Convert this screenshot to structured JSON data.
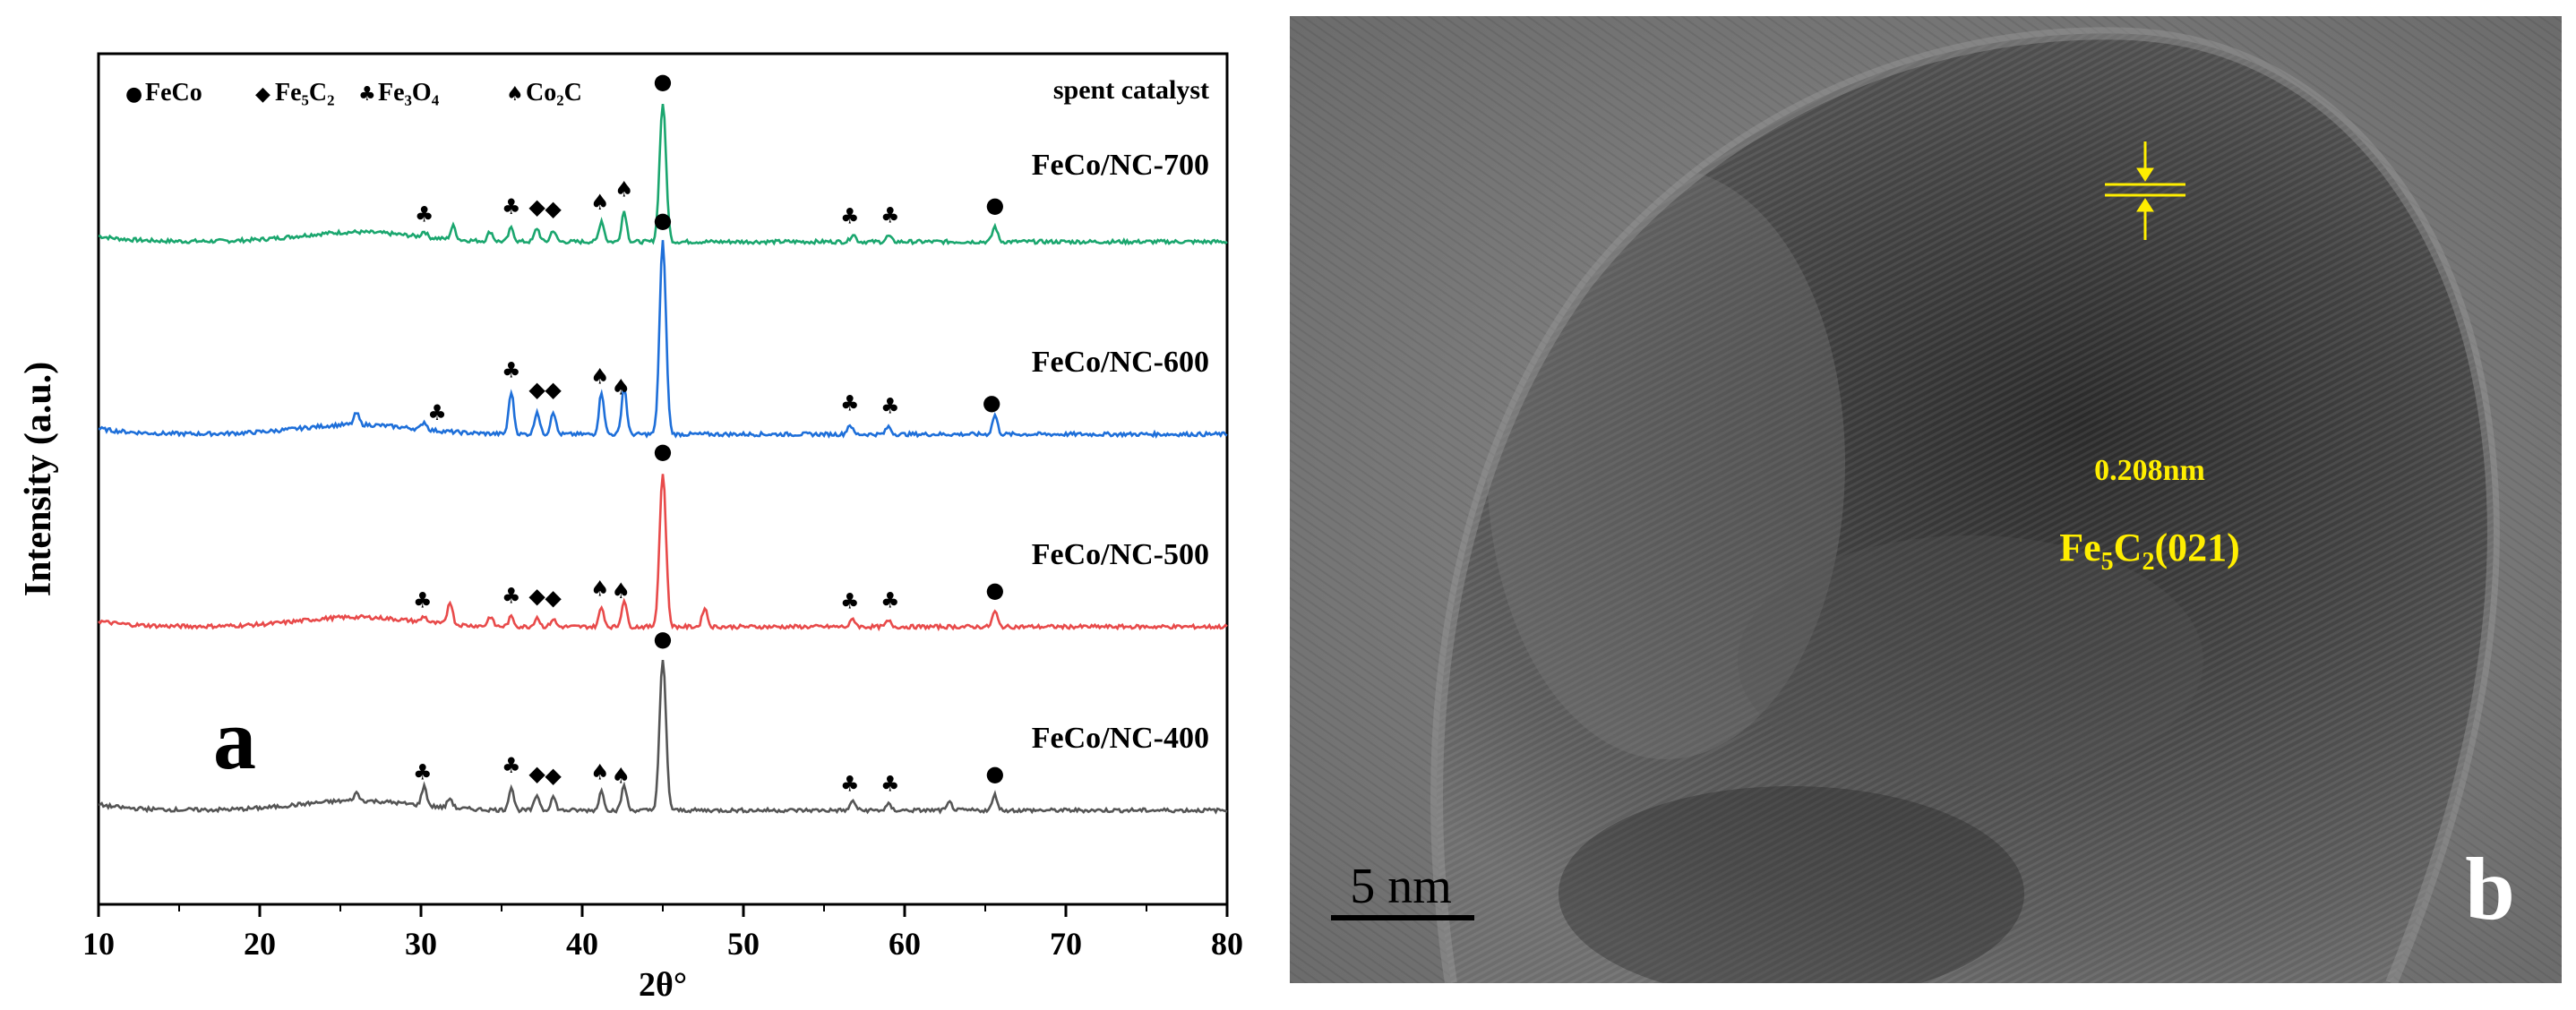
{
  "chart_data": {
    "type": "line",
    "panel_label": "a",
    "xlabel": "2θ°",
    "ylabel": "Intensity (a.u.)",
    "xlim": [
      10,
      80
    ],
    "x_ticks": [
      10,
      20,
      30,
      40,
      50,
      60,
      70,
      80
    ],
    "y_ticks": "none",
    "grid": false,
    "legend": {
      "placement": "top",
      "entries": [
        {
          "symbol": "●",
          "label": "FeCo"
        },
        {
          "symbol": "◆",
          "label": "Fe₅C₂"
        },
        {
          "symbol": "♣",
          "label": "Fe₃O₄"
        },
        {
          "symbol": "♠",
          "label": "Co₂C"
        }
      ]
    },
    "annotation_top_right": "spent catalyst",
    "series": [
      {
        "name": "FeCo/NC-700",
        "color": "#1aa66e",
        "offset": 3,
        "peaks": [
          [
            30.2,
            0.03
          ],
          [
            32,
            0.07
          ],
          [
            34.3,
            0.05
          ],
          [
            35.6,
            0.07
          ],
          [
            37.2,
            0.07
          ],
          [
            38.2,
            0.06
          ],
          [
            41.2,
            0.11
          ],
          [
            42.6,
            0.16
          ],
          [
            45,
            0.72
          ],
          [
            56.8,
            0.04
          ],
          [
            59,
            0.03
          ],
          [
            65.6,
            0.08
          ]
        ],
        "markers": [
          [
            30.2,
            "♣"
          ],
          [
            35.6,
            "♣"
          ],
          [
            37.2,
            "◆"
          ],
          [
            38.2,
            "◆"
          ],
          [
            41.1,
            "♠"
          ],
          [
            42.6,
            "♠"
          ],
          [
            45,
            "●"
          ],
          [
            56.6,
            "♣"
          ],
          [
            59.1,
            "♣"
          ],
          [
            65.6,
            "●"
          ]
        ]
      },
      {
        "name": "FeCo/NC-600",
        "color": "#1e6fd9",
        "offset": 2,
        "peaks": [
          [
            26,
            0.06
          ],
          [
            30.2,
            0.04
          ],
          [
            35.6,
            0.22
          ],
          [
            37.2,
            0.12
          ],
          [
            38.2,
            0.12
          ],
          [
            41.2,
            0.22
          ],
          [
            42.6,
            0.25
          ],
          [
            45,
            1.0
          ],
          [
            56.6,
            0.05
          ],
          [
            59,
            0.04
          ],
          [
            65.6,
            0.1
          ]
        ],
        "markers": [
          [
            31,
            "♣"
          ],
          [
            35.6,
            "♣"
          ],
          [
            37.2,
            "◆"
          ],
          [
            38.2,
            "◆"
          ],
          [
            41.1,
            "♠"
          ],
          [
            42.4,
            "♠"
          ],
          [
            45,
            "●"
          ],
          [
            56.6,
            "♣"
          ],
          [
            59.1,
            "♣"
          ],
          [
            65.4,
            "●"
          ]
        ]
      },
      {
        "name": "FeCo/NC-500",
        "color": "#e84a4a",
        "offset": 1,
        "peaks": [
          [
            30.2,
            0.03
          ],
          [
            31.8,
            0.12
          ],
          [
            34.3,
            0.05
          ],
          [
            35.6,
            0.05
          ],
          [
            37.2,
            0.05
          ],
          [
            38.2,
            0.04
          ],
          [
            41.2,
            0.1
          ],
          [
            42.6,
            0.14
          ],
          [
            45,
            0.8
          ],
          [
            47.6,
            0.1
          ],
          [
            56.8,
            0.04
          ],
          [
            59,
            0.03
          ],
          [
            65.6,
            0.08
          ]
        ],
        "markers": [
          [
            30.1,
            "♣"
          ],
          [
            35.6,
            "♣"
          ],
          [
            37.2,
            "◆"
          ],
          [
            38.2,
            "◆"
          ],
          [
            41.1,
            "♠"
          ],
          [
            42.4,
            "♠"
          ],
          [
            45,
            "●"
          ],
          [
            56.6,
            "♣"
          ],
          [
            59.1,
            "♣"
          ],
          [
            65.6,
            "●"
          ]
        ]
      },
      {
        "name": "FeCo/NC-400",
        "color": "#555555",
        "offset": 0,
        "peaks": [
          [
            26,
            0.04
          ],
          [
            30.2,
            0.1
          ],
          [
            31.8,
            0.05
          ],
          [
            35.6,
            0.12
          ],
          [
            37.2,
            0.08
          ],
          [
            38.2,
            0.07
          ],
          [
            41.2,
            0.1
          ],
          [
            42.6,
            0.13
          ],
          [
            45,
            0.78
          ],
          [
            56.8,
            0.05
          ],
          [
            59,
            0.03
          ],
          [
            62.8,
            0.04
          ],
          [
            65.6,
            0.08
          ]
        ],
        "markers": [
          [
            30.1,
            "♣"
          ],
          [
            35.6,
            "♣"
          ],
          [
            37.2,
            "◆"
          ],
          [
            38.2,
            "◆"
          ],
          [
            41.1,
            "♠"
          ],
          [
            42.4,
            "♠"
          ],
          [
            45,
            "●"
          ],
          [
            56.6,
            "♣"
          ],
          [
            59.1,
            "♣"
          ],
          [
            65.6,
            "●"
          ]
        ]
      }
    ]
  },
  "tem_panel": {
    "panel_label": "b",
    "scale_bar_label": "5 nm",
    "d_spacing_label": "0.208nm",
    "plane_label_main": "Fe",
    "plane_label_sub1": "5",
    "plane_label_mid": "C",
    "plane_label_sub2": "2",
    "plane_label_end": "(021)",
    "annotation_color": "#ffee00"
  }
}
